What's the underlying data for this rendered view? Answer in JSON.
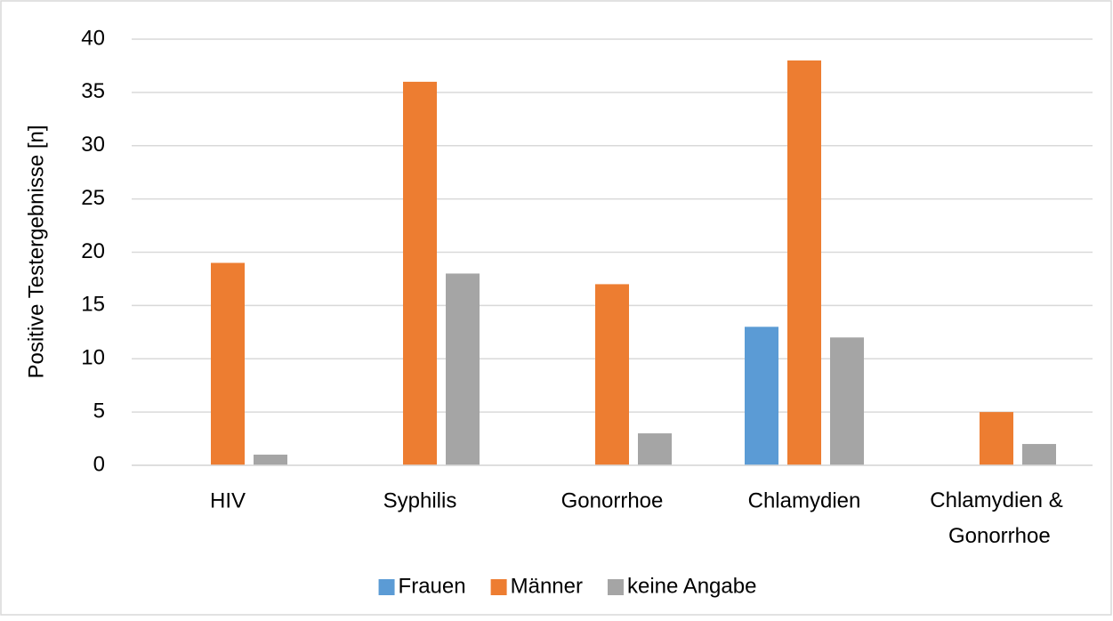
{
  "chart_data": {
    "type": "bar",
    "y_label": "Positive Testergebnisse [n]",
    "categories": [
      "HIV",
      "Syphilis",
      "Gonorrhoe",
      "Chlamydien",
      "Chlamydien & Gonorrhoe"
    ],
    "series": [
      {
        "name": "Frauen",
        "color": "#5b9bd5",
        "values": [
          0,
          0,
          0,
          13,
          0
        ]
      },
      {
        "name": "Männer",
        "color": "#ed7d31",
        "values": [
          19,
          36,
          17,
          38,
          5
        ]
      },
      {
        "name": "keine Angabe",
        "color": "#a5a5a5",
        "values": [
          1,
          18,
          3,
          12,
          2
        ]
      }
    ],
    "ylim": [
      0,
      40
    ],
    "yticks": [
      0,
      5,
      10,
      15,
      20,
      25,
      30,
      35,
      40
    ],
    "grid": true,
    "legend": "bottom"
  }
}
